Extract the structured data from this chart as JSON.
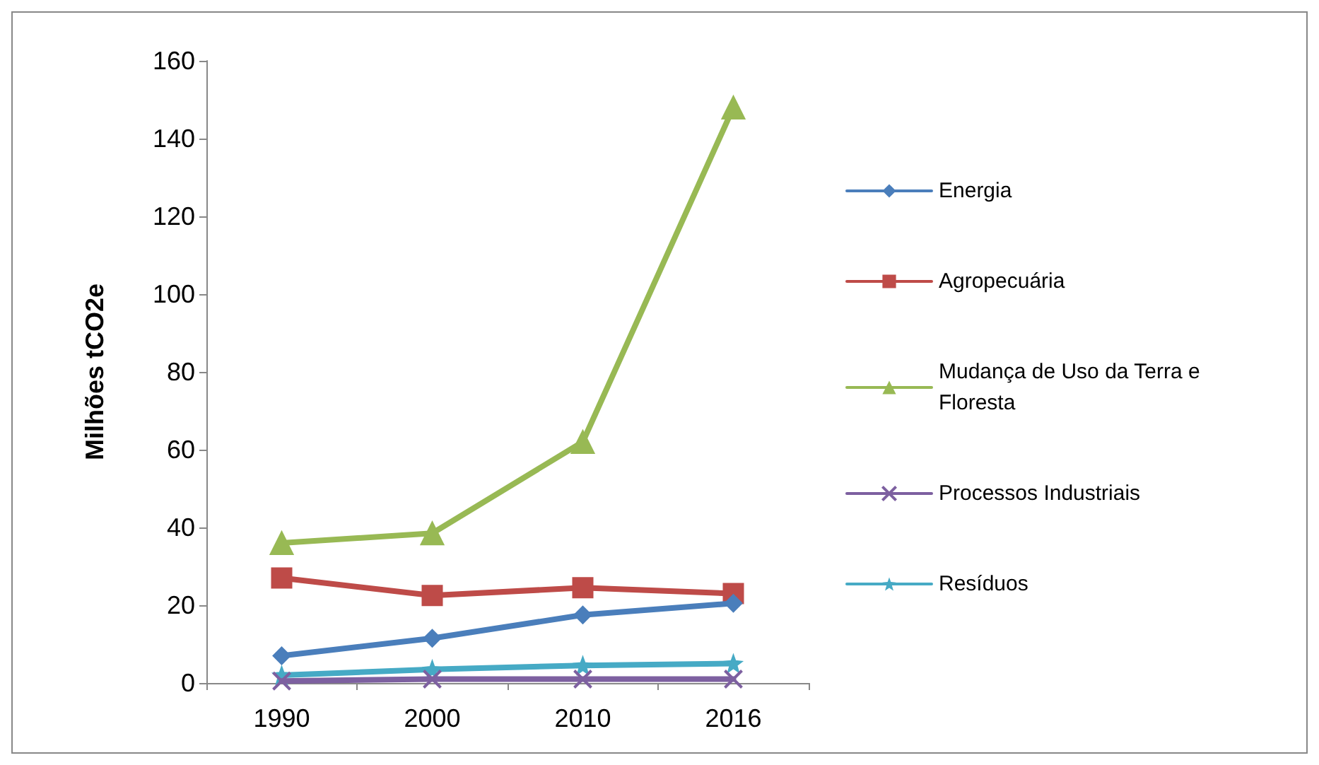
{
  "chart_data": {
    "type": "line",
    "ylabel": "Milhões tCO2e",
    "categories": [
      "1990",
      "2000",
      "2010",
      "2016"
    ],
    "ylim": [
      0,
      160
    ],
    "yticks": [
      0,
      20,
      40,
      60,
      80,
      100,
      120,
      140,
      160
    ],
    "grid": false,
    "legend": "right",
    "line_style": "solid",
    "series": [
      {
        "name": "Energia",
        "color": "#4a7ebb",
        "marker": "diamond",
        "values": [
          7,
          11.5,
          17.5,
          20.5
        ]
      },
      {
        "name": "Agropecuária",
        "color": "#be4b48",
        "marker": "square",
        "values": [
          27,
          22.5,
          24.5,
          23
        ]
      },
      {
        "name": "Mudança de Uso da Terra e Floresta",
        "color": "#98b954",
        "marker": "triangle",
        "values": [
          36,
          38.5,
          62,
          148
        ]
      },
      {
        "name": "Processos Industriais",
        "color": "#7d60a0",
        "marker": "cross",
        "values": [
          0.5,
          1,
          1,
          1
        ]
      },
      {
        "name": "Resíduos",
        "color": "#46aac5",
        "marker": "star",
        "values": [
          2,
          3.5,
          4.5,
          5
        ]
      }
    ]
  }
}
